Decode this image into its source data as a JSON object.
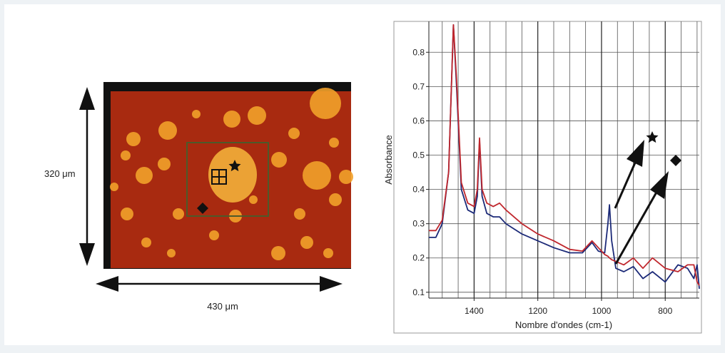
{
  "image_panel": {
    "height_label": "320 μm",
    "width_label": "430 μm"
  },
  "chart_data": {
    "type": "line",
    "x_label": "Nombre d'ondes (cm-1)",
    "y_label": "Absorbance",
    "x": [
      1542,
      1520,
      1500,
      1480,
      1465,
      1455,
      1440,
      1420,
      1400,
      1390,
      1383,
      1375,
      1360,
      1340,
      1320,
      1300,
      1250,
      1200,
      1150,
      1100,
      1060,
      1030,
      1010,
      990,
      980,
      975,
      968,
      955,
      930,
      900,
      870,
      840,
      800,
      760,
      730,
      710,
      700,
      693
    ],
    "series": [
      {
        "color": "#1c2a78",
        "values": [
          0.26,
          0.26,
          0.3,
          0.45,
          0.88,
          0.7,
          0.4,
          0.34,
          0.33,
          0.38,
          0.54,
          0.38,
          0.33,
          0.32,
          0.32,
          0.3,
          0.27,
          0.25,
          0.23,
          0.215,
          0.215,
          0.245,
          0.22,
          0.215,
          0.3,
          0.355,
          0.25,
          0.17,
          0.16,
          0.175,
          0.14,
          0.16,
          0.13,
          0.18,
          0.17,
          0.14,
          0.18,
          0.11
        ]
      },
      {
        "color": "#c0272d",
        "values": [
          0.28,
          0.28,
          0.31,
          0.45,
          0.88,
          0.72,
          0.42,
          0.36,
          0.35,
          0.4,
          0.55,
          0.4,
          0.36,
          0.35,
          0.36,
          0.34,
          0.3,
          0.27,
          0.25,
          0.225,
          0.22,
          0.25,
          0.23,
          0.21,
          0.205,
          0.2,
          0.195,
          0.19,
          0.18,
          0.2,
          0.17,
          0.2,
          0.17,
          0.16,
          0.18,
          0.18,
          0.13,
          0.12
        ]
      }
    ],
    "xlim": [
      1542,
      693
    ],
    "ylim": [
      0.083,
      0.89
    ],
    "xticks": [
      1400,
      1200,
      1000,
      800
    ],
    "x_minor_gridlines": [
      1500,
      1450,
      1350,
      1300,
      1250,
      1150,
      1100,
      1050,
      950,
      900,
      850,
      750,
      700
    ],
    "yticks": [
      0.1,
      0.2,
      0.3,
      0.4,
      0.5,
      0.6,
      0.7,
      0.8
    ],
    "grid": true
  }
}
